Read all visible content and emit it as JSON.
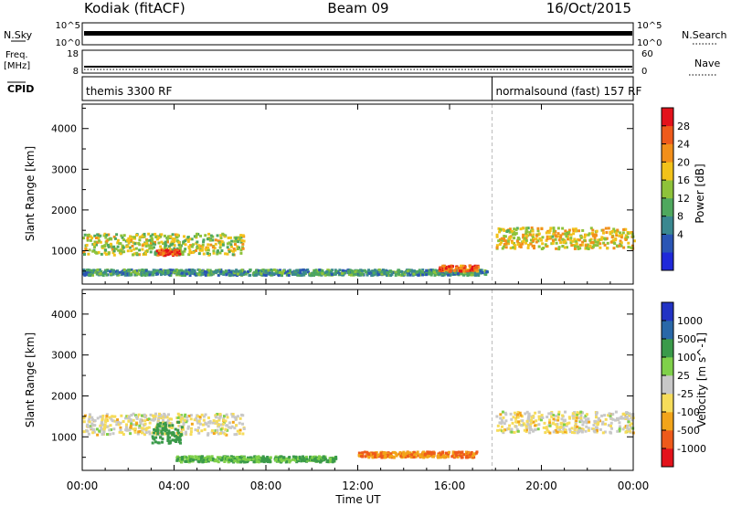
{
  "header": {
    "station": "Kodiak (fitACF)",
    "beam": "Beam 09",
    "date": "16/Oct/2015"
  },
  "strip_labels": {
    "nsky": "N.Sky",
    "nsearch": "N.Search",
    "freq_line1": "Freq.",
    "freq_line2": "[MHz]",
    "nave": "Nave",
    "cpid": "CPID",
    "noise_tick_top": "10^5",
    "noise_tick_bottom": "10^0",
    "noise_tick_top_right": "10^5",
    "noise_tick_bottom_right": "10^0",
    "freq_tick_top": "18",
    "freq_tick_bottom": "8",
    "nave_tick_top": "60",
    "nave_tick_bottom": "0"
  },
  "cpid_modes": [
    {
      "label": "themis 3300 RF",
      "start_hour": 0
    },
    {
      "label": "normalsound (fast) 157 RF",
      "start_hour": 17.85
    }
  ],
  "x_axis": {
    "label": "Time UT",
    "ticks": [
      "00:00",
      "04:00",
      "08:00",
      "12:00",
      "16:00",
      "20:00",
      "00:00"
    ]
  },
  "colors": {
    "power": [
      "#1f29d9",
      "#2a55b5",
      "#3a8890",
      "#4fa85e",
      "#8ec23a",
      "#f2c21a",
      "#f28f1a",
      "#ee5a1b",
      "#e3121b"
    ],
    "velocity": [
      "#e3121b",
      "#ee5a1b",
      "#f2a41a",
      "#f6dc5a",
      "#c8c8c8",
      "#7fd04a",
      "#3a9a4a",
      "#2a68a8",
      "#2233c4"
    ]
  },
  "chart_data": [
    {
      "type": "heatmap",
      "panel": "power",
      "ylabel": "Slant Range [km]",
      "xlabel": "",
      "xlim": [
        0,
        24
      ],
      "ylim": [
        180,
        4600
      ],
      "yticks": [
        1000,
        2000,
        3000,
        4000
      ],
      "colorbar": {
        "label": "Power [dB]",
        "ticks": [
          "28",
          "24",
          "20",
          "16",
          "12",
          "8",
          "4"
        ]
      },
      "features": [
        {
          "name": "low-range band",
          "t_start": 0,
          "t_end": 17.6,
          "range_km": 460,
          "value": 12
        },
        {
          "name": "morning backscatter",
          "t_start": 0,
          "t_end": 7,
          "range_km": 1150,
          "value": 18
        },
        {
          "name": "intense patch",
          "t_start": 3.2,
          "t_end": 4.2,
          "range_km": 950,
          "value": 28
        },
        {
          "name": "afternoon patch",
          "t_start": 15.5,
          "t_end": 17.2,
          "range_km": 560,
          "value": 26
        },
        {
          "name": "evening backscatter",
          "t_start": 18,
          "t_end": 24,
          "range_km": 1300,
          "value": 20
        }
      ]
    },
    {
      "type": "heatmap",
      "panel": "velocity",
      "ylabel": "Slant Range [km]",
      "xlabel": "Time UT",
      "xlim": [
        0,
        24
      ],
      "ylim": [
        180,
        4600
      ],
      "yticks": [
        1000,
        2000,
        3000,
        4000
      ],
      "colorbar": {
        "label": "Velocity [m s^-1]",
        "ticks": [
          "1000",
          "500",
          "100",
          "25",
          "-25",
          "-100",
          "-500",
          "-1000"
        ]
      },
      "features": [
        {
          "name": "ground scatter",
          "t_start": 0,
          "t_end": 7,
          "range_km": 1300,
          "value": 0
        },
        {
          "name": "low-range flow",
          "t_start": 4,
          "t_end": 11,
          "range_km": 450,
          "value": 100
        },
        {
          "name": "green flow patch",
          "t_start": 3.0,
          "t_end": 4.3,
          "range_km": 1100,
          "value": 200
        },
        {
          "name": "orange patch",
          "t_start": 12,
          "t_end": 17.2,
          "range_km": 560,
          "value": -100
        },
        {
          "name": "evening ground scatter",
          "t_start": 18,
          "t_end": 24,
          "range_km": 1350,
          "value": 0
        }
      ]
    }
  ]
}
